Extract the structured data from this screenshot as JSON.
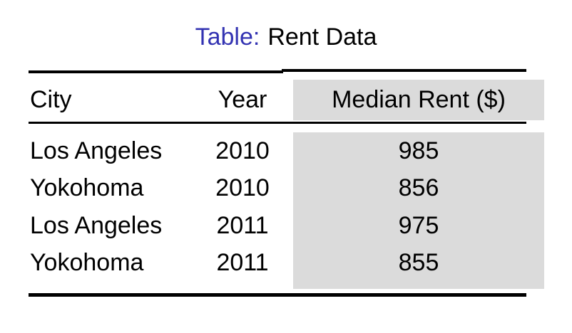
{
  "caption": {
    "label": "Table:",
    "title": "Rent Data",
    "label_color": "#3333B2"
  },
  "table": {
    "headers": {
      "city": "City",
      "year": "Year",
      "rent": "Median Rent ($)"
    },
    "rows": [
      {
        "city": "Los Angeles",
        "year": "2010",
        "rent": "985"
      },
      {
        "city": "Yokohoma",
        "year": "2010",
        "rent": "856"
      },
      {
        "city": "Los Angeles",
        "year": "2011",
        "rent": "975"
      },
      {
        "city": "Yokohoma",
        "year": "2011",
        "rent": "855"
      }
    ],
    "highlight_color": "#DBDBDB",
    "rule_color": "#000000",
    "text_color": "#000000"
  },
  "chart_data": {
    "type": "table",
    "title": "Rent Data",
    "columns": [
      "City",
      "Year",
      "Median Rent ($)"
    ],
    "rows": [
      [
        "Los Angeles",
        "2010",
        "985"
      ],
      [
        "Yokohoma",
        "2010",
        "856"
      ],
      [
        "Los Angeles",
        "2011",
        "975"
      ],
      [
        "Yokohoma",
        "2011",
        "855"
      ]
    ],
    "highlighted_column": "Median Rent ($)"
  }
}
